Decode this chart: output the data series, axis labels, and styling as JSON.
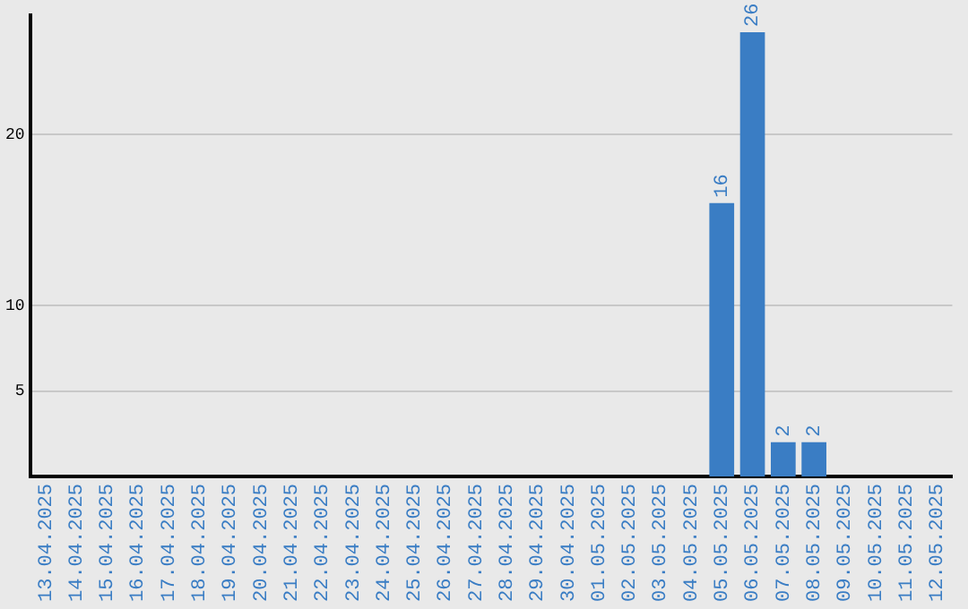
{
  "chart_data": {
    "type": "bar",
    "categories": [
      "13.04.2025",
      "14.04.2025",
      "15.04.2025",
      "16.04.2025",
      "17.04.2025",
      "18.04.2025",
      "19.04.2025",
      "20.04.2025",
      "21.04.2025",
      "22.04.2025",
      "23.04.2025",
      "24.04.2025",
      "25.04.2025",
      "26.04.2025",
      "27.04.2025",
      "28.04.2025",
      "29.04.2025",
      "30.04.2025",
      "01.05.2025",
      "02.05.2025",
      "03.05.2025",
      "04.05.2025",
      "05.05.2025",
      "06.05.2025",
      "07.05.2025",
      "08.05.2025",
      "09.05.2025",
      "10.05.2025",
      "11.05.2025",
      "12.05.2025"
    ],
    "values": [
      0,
      0,
      0,
      0,
      0,
      0,
      0,
      0,
      0,
      0,
      0,
      0,
      0,
      0,
      0,
      0,
      0,
      0,
      0,
      0,
      0,
      0,
      16,
      26,
      2,
      2,
      0,
      0,
      0,
      0
    ],
    "value_labels": [
      null,
      null,
      null,
      null,
      null,
      null,
      null,
      null,
      null,
      null,
      null,
      null,
      null,
      null,
      null,
      null,
      null,
      null,
      null,
      null,
      null,
      null,
      "16",
      "26",
      "2",
      "2",
      null,
      null,
      null,
      null
    ],
    "color": "#3a7dc4",
    "ylim": [
      0,
      27
    ],
    "yticks": [
      5,
      10,
      20
    ],
    "grid": "y",
    "legend": false
  }
}
